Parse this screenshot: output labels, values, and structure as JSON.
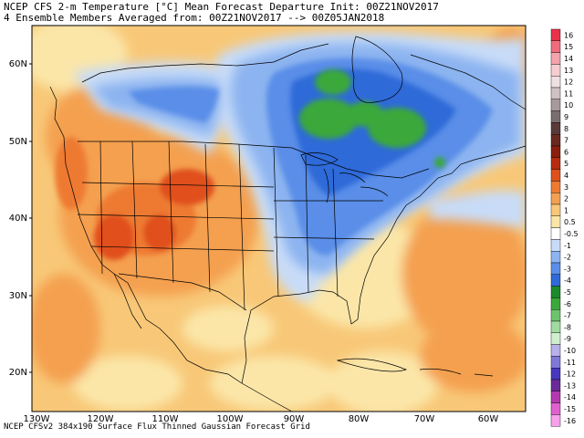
{
  "header": {
    "line1": "NCEP CFS 2-m Temperature [°C] Mean Forecast Departure Init: 00Z21NOV2017",
    "line2": "4 Ensemble Members Averaged from: 00Z21NOV2017 --> 00Z05JAN2018"
  },
  "footer": "NCEP CFSv2 384x190 Surface Flux Thinned Gaussian Forecast Grid",
  "lat_labels": [
    "60N",
    "50N",
    "40N",
    "30N",
    "20N"
  ],
  "lon_labels": [
    "130W",
    "120W",
    "110W",
    "100W",
    "90W",
    "80W",
    "70W",
    "60W"
  ],
  "legend": {
    "labels": [
      "16",
      "15",
      "14",
      "13",
      "12",
      "11",
      "10",
      "9",
      "8",
      "7",
      "6",
      "5",
      "4",
      "3",
      "2",
      "1",
      "0.5",
      "-0.5",
      "-1",
      "-2",
      "-3",
      "-4",
      "-5",
      "-6",
      "-7",
      "-8",
      "-9",
      "-10",
      "-11",
      "-12",
      "-13",
      "-14",
      "-15",
      "-16"
    ],
    "colors": [
      "#e8324a",
      "#f06c7c",
      "#f5a3ad",
      "#f8cdd2",
      "#f0e0e2",
      "#cfc2c4",
      "#a89a9c",
      "#7a6d70",
      "#5a3a38",
      "#6a2a20",
      "#8a1f10",
      "#b82c10",
      "#e0501c",
      "#ee7a30",
      "#f4a050",
      "#f8c878",
      "#fbe6a8",
      "#ffffff",
      "#c8dcf8",
      "#8cb4f0",
      "#5a8ee8",
      "#2f6ad8",
      "#1a8a2a",
      "#3aa83a",
      "#6cc46c",
      "#a0dca0",
      "#d0eed0",
      "#b8b0e8",
      "#8078d8",
      "#4838c0",
      "#6a2a9a",
      "#b438b0",
      "#e060d0",
      "#f8a0ec"
    ]
  },
  "colors": {
    "warm_light": "#fbe6a8",
    "warm_mid": "#f8c878",
    "warm": "#f4a050",
    "hot": "#e0501c",
    "cool_light": "#c8dcf8",
    "cool": "#5a8ee8",
    "cold": "#2f6ad8",
    "green": "#3aa83a"
  }
}
